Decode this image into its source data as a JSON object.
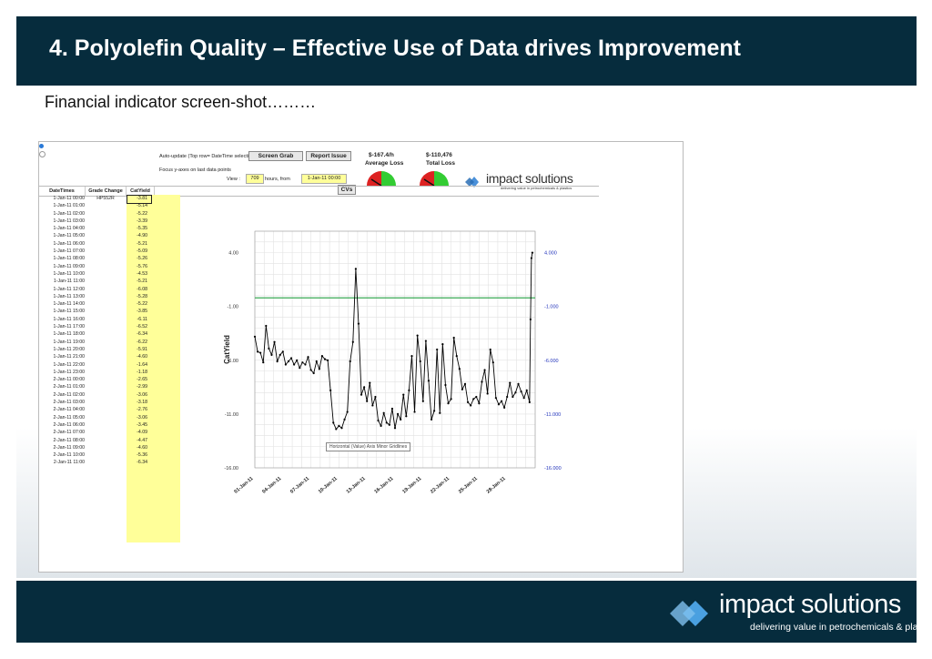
{
  "slide": {
    "title": "4. Polyolefin Quality – Effective Use of Data drives Improvement",
    "subtitle": "Financial indicator screen-shot………",
    "footer_logo_name": "impact solutions",
    "footer_logo_tagline": "delivering value in petrochemicals & plastics"
  },
  "app": {
    "auto_update_label": "Auto-update  (Top row= DateTime selection)",
    "focus_label": "Focus y-axes on last data points",
    "screen_grab_label": "Screen Grab",
    "report_issue_label": "Report Issue",
    "view_label": "View :",
    "view_hours": "709",
    "hours_from_label": "hours, from",
    "from_date": "1-Jan-11 00:00",
    "cvs_label": "CVs",
    "avg_loss_value": "$-167.4/h",
    "avg_loss_label": "Average Loss",
    "total_loss_value": "$-110,476",
    "total_loss_label": "Total Loss",
    "logo_name": "impact solutions",
    "logo_tagline": "delivering value in petrochemicals & plastics"
  },
  "grid": {
    "headers": [
      "DateTimes",
      "Grade Change",
      "CatYield"
    ],
    "rows": [
      {
        "dt": "1-Jan-11 00:00",
        "grade": "HP552R",
        "cy": "-3.81"
      },
      {
        "dt": "1-Jan-11 01:00",
        "grade": "",
        "cy": "-5.14"
      },
      {
        "dt": "1-Jan-11 02:00",
        "grade": "",
        "cy": "-5.22"
      },
      {
        "dt": "1-Jan-11 03:00",
        "grade": "",
        "cy": "-3.39"
      },
      {
        "dt": "1-Jan-11 04:00",
        "grade": "",
        "cy": "-5.35"
      },
      {
        "dt": "1-Jan-11 05:00",
        "grade": "",
        "cy": "-4.90"
      },
      {
        "dt": "1-Jan-11 06:00",
        "grade": "",
        "cy": "-5.21"
      },
      {
        "dt": "1-Jan-11 07:00",
        "grade": "",
        "cy": "-5.09"
      },
      {
        "dt": "1-Jan-11 08:00",
        "grade": "",
        "cy": "-5.26"
      },
      {
        "dt": "1-Jan-11 09:00",
        "grade": "",
        "cy": "-5.76"
      },
      {
        "dt": "1-Jan-11 10:00",
        "grade": "",
        "cy": "-4.53"
      },
      {
        "dt": "1-Jan-11 11:00",
        "grade": "",
        "cy": "-5.21"
      },
      {
        "dt": "1-Jan-11 12:00",
        "grade": "",
        "cy": "-6.08"
      },
      {
        "dt": "1-Jan-11 13:00",
        "grade": "",
        "cy": "-5.28"
      },
      {
        "dt": "1-Jan-11 14:00",
        "grade": "",
        "cy": "-5.22"
      },
      {
        "dt": "1-Jan-11 15:00",
        "grade": "",
        "cy": "-3.85"
      },
      {
        "dt": "1-Jan-11 16:00",
        "grade": "",
        "cy": "-6.11"
      },
      {
        "dt": "1-Jan-11 17:00",
        "grade": "",
        "cy": "-6.52"
      },
      {
        "dt": "1-Jan-11 18:00",
        "grade": "",
        "cy": "-6.34"
      },
      {
        "dt": "1-Jan-11 19:00",
        "grade": "",
        "cy": "-6.22"
      },
      {
        "dt": "1-Jan-11 20:00",
        "grade": "",
        "cy": "-5.91"
      },
      {
        "dt": "1-Jan-11 21:00",
        "grade": "",
        "cy": "-4.60"
      },
      {
        "dt": "1-Jan-11 22:00",
        "grade": "",
        "cy": "-1.64"
      },
      {
        "dt": "1-Jan-11 23:00",
        "grade": "",
        "cy": "-1.18"
      },
      {
        "dt": "2-Jan-11 00:00",
        "grade": "",
        "cy": "-2.65"
      },
      {
        "dt": "2-Jan-11 01:00",
        "grade": "",
        "cy": "-2.99"
      },
      {
        "dt": "2-Jan-11 02:00",
        "grade": "",
        "cy": "-3.06"
      },
      {
        "dt": "2-Jan-11 03:00",
        "grade": "",
        "cy": "-3.18"
      },
      {
        "dt": "2-Jan-11 04:00",
        "grade": "",
        "cy": "-2.76"
      },
      {
        "dt": "2-Jan-11 05:00",
        "grade": "",
        "cy": "-3.06"
      },
      {
        "dt": "2-Jan-11 06:00",
        "grade": "",
        "cy": "-3.45"
      },
      {
        "dt": "2-Jan-11 07:00",
        "grade": "",
        "cy": "-4.09"
      },
      {
        "dt": "2-Jan-11 08:00",
        "grade": "",
        "cy": "-4.47"
      },
      {
        "dt": "2-Jan-11 09:00",
        "grade": "",
        "cy": "-4.60"
      },
      {
        "dt": "2-Jan-11 10:00",
        "grade": "",
        "cy": "-5.36"
      },
      {
        "dt": "2-Jan-11 11:00",
        "grade": "",
        "cy": "-6.34"
      }
    ]
  },
  "chart_data": {
    "type": "line",
    "ylabel": "CatYield",
    "ylim": [
      -16,
      6
    ],
    "yticks": [
      "4.00",
      "-1.00",
      "-6.00",
      "-11.00",
      "-16.00"
    ],
    "yticks_right": [
      "4.000",
      "-1.000",
      "-6.000",
      "-11.000",
      "-16.000"
    ],
    "xticks": [
      "01-Jan-11",
      "04-Jan-11",
      "07-Jan-11",
      "10-Jan-11",
      "13-Jan-11",
      "16-Jan-11",
      "19-Jan-11",
      "22-Jan-11",
      "25-Jan-11",
      "28-Jan-11"
    ],
    "xlim_days": [
      0,
      30
    ],
    "target_line": -0.2,
    "tooltip": "Horizontal (Value) Axis Minor Gridlines",
    "series": [
      {
        "x": [
          0,
          0.3,
          0.6,
          0.9,
          1.2,
          1.5,
          1.8,
          2.1,
          2.4,
          2.7,
          3.0,
          3.3,
          3.6,
          3.9,
          4.2,
          4.5,
          4.8,
          5.1,
          5.4,
          5.7,
          6.0,
          6.3,
          6.6,
          6.9,
          7.2,
          7.5,
          7.8,
          8.1,
          8.4,
          8.7,
          9.0,
          9.3,
          9.6,
          9.9,
          10.2,
          10.5,
          10.8,
          11.1,
          11.4,
          11.7,
          12.0,
          12.3,
          12.6,
          12.9,
          13.2,
          13.5,
          13.8,
          14.1,
          14.4,
          14.7,
          15.0,
          15.3,
          15.6,
          15.9,
          16.2,
          16.5,
          16.8,
          17.1,
          17.4,
          17.7,
          18.0,
          18.3,
          18.6,
          18.9,
          19.2,
          19.5,
          19.8,
          20.1,
          20.4,
          20.7,
          21.0,
          21.3,
          21.6,
          21.9,
          22.2,
          22.5,
          22.8,
          23.1,
          23.4,
          23.7,
          24.0,
          24.3,
          24.6,
          24.9,
          25.2,
          25.5,
          25.8,
          26.1,
          26.4,
          26.7,
          27.0,
          27.3,
          27.6,
          27.9,
          28.2,
          28.5,
          28.8,
          29.1,
          29.4,
          29.5,
          29.6,
          29.7
        ],
        "y": [
          -3.8,
          -5.2,
          -5.3,
          -6.2,
          -2.8,
          -4.9,
          -5.5,
          -4.3,
          -6.1,
          -5.5,
          -5.2,
          -6.4,
          -6.1,
          -5.8,
          -6.4,
          -6.0,
          -6.7,
          -6.2,
          -6.4,
          -5.7,
          -6.9,
          -7.2,
          -6.1,
          -6.8,
          -5.6,
          -5.9,
          -6.0,
          -8.8,
          -11.8,
          -12.4,
          -12.1,
          -12.3,
          -11.5,
          -10.8,
          -6.1,
          -4.3,
          2.5,
          -2.6,
          -9.2,
          -8.5,
          -9.8,
          -8.1,
          -10.2,
          -9.4,
          -11.6,
          -12.1,
          -10.9,
          -11.8,
          -12.0,
          -10.5,
          -12.3,
          -11.0,
          -11.5,
          -9.2,
          -11.2,
          -8.8,
          -5.6,
          -10.8,
          -3.7,
          -6.1,
          -9.8,
          -4.2,
          -7.9,
          -11.5,
          -10.7,
          -5.0,
          -10.9,
          -4.5,
          -8.3,
          -10.0,
          -9.6,
          -3.9,
          -5.6,
          -6.8,
          -8.7,
          -8.2,
          -9.9,
          -10.2,
          -9.6,
          -9.4,
          -10.0,
          -8.0,
          -6.9,
          -9.1,
          -5.0,
          -6.2,
          -9.5,
          -10.1,
          -9.8,
          -10.4,
          -9.4,
          -8.1,
          -9.4,
          -9.0,
          -8.2,
          -8.9,
          -9.5,
          -8.8,
          -9.9,
          -2.2,
          3.5,
          4.0
        ]
      }
    ]
  }
}
